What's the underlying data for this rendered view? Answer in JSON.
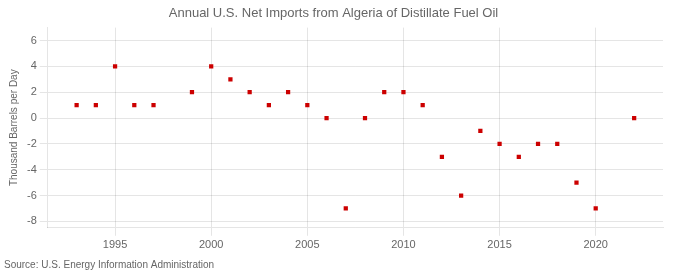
{
  "chart_data": {
    "type": "scatter",
    "title": "Annual U.S. Net Imports from Algeria of Distillate Fuel Oil",
    "ylabel": "Thousand Barrels per Day",
    "annotations": [
      "Source: U.S. Energy Information Administration"
    ],
    "x": [
      1993,
      1994,
      1995,
      1996,
      1997,
      1999,
      2000,
      2001,
      2002,
      2003,
      2004,
      2005,
      2006,
      2007,
      2008,
      2009,
      2010,
      2011,
      2012,
      2013,
      2014,
      2015,
      2016,
      2017,
      2018,
      2019,
      2020,
      2022
    ],
    "values": [
      1,
      1,
      4,
      1,
      1,
      2,
      4,
      3,
      2,
      1,
      2,
      1,
      0,
      -7,
      0,
      2,
      2,
      1,
      -3,
      -6,
      -1,
      -2,
      -3,
      -2,
      -2,
      -5,
      -7,
      0
    ],
    "color": "#cc0000",
    "marker": "square",
    "xlim": [
      1991.5,
      2023.5
    ],
    "xticks": [
      1995,
      2000,
      2005,
      2010,
      2015,
      2020
    ],
    "ylim": [
      -8.5,
      7
    ],
    "yticks": [
      -8,
      -6,
      -4,
      -2,
      0,
      2,
      4,
      6
    ],
    "grid": true
  }
}
